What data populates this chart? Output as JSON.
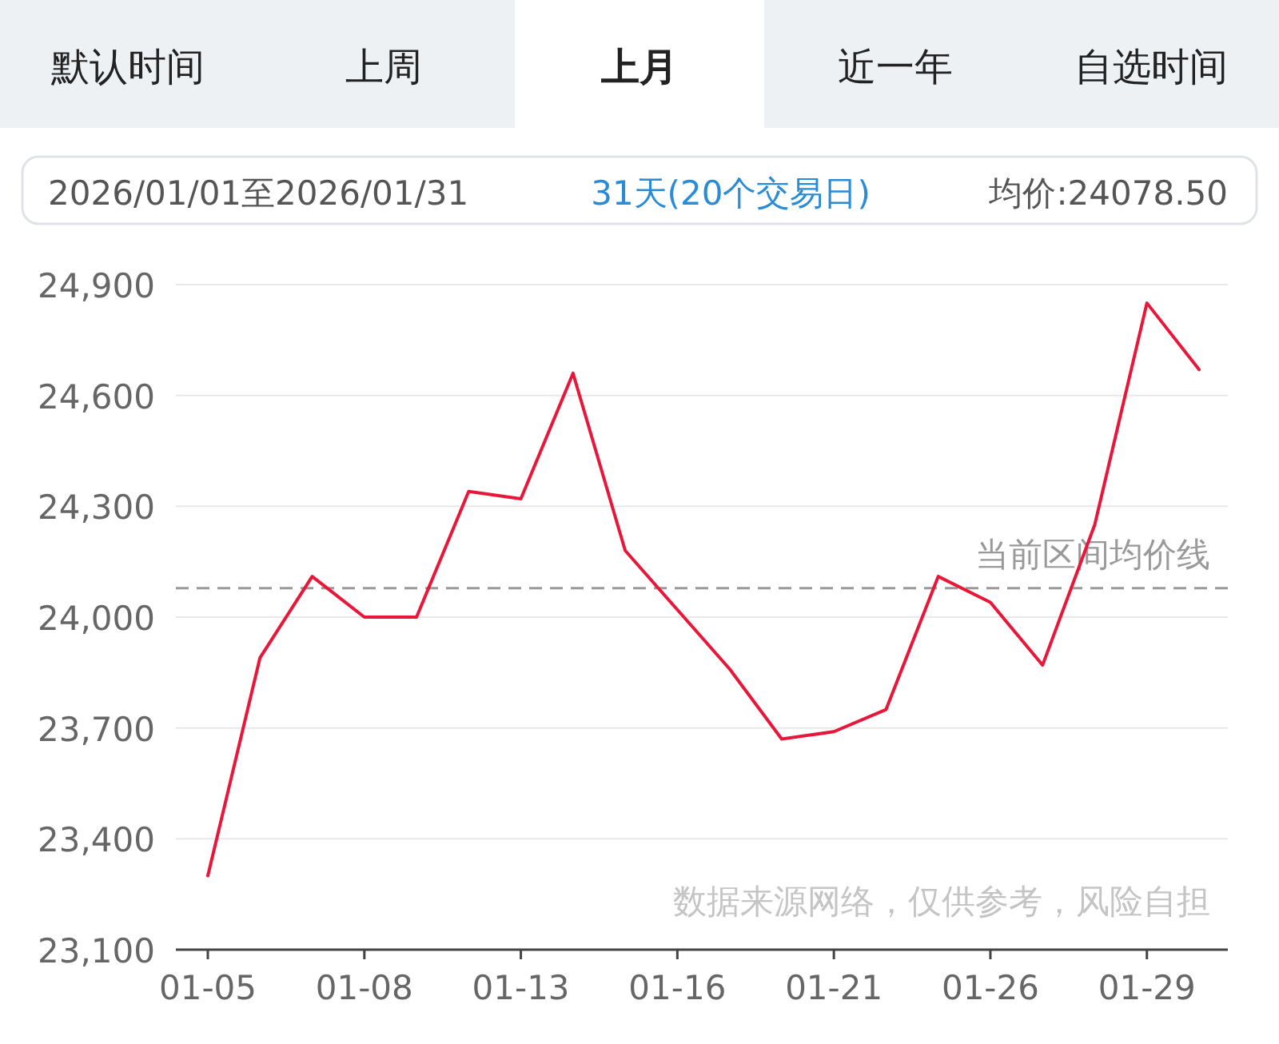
{
  "chart_data": {
    "type": "line",
    "categories": [
      "01-05",
      null,
      null,
      "01-08",
      null,
      null,
      "01-13",
      null,
      null,
      "01-16",
      null,
      null,
      "01-21",
      null,
      null,
      "01-26",
      null,
      null,
      "01-29",
      null
    ],
    "series": [
      {
        "color": "#e8173a",
        "values": [
          23300,
          23890,
          24110,
          24000,
          24000,
          24340,
          24320,
          24660,
          24180,
          24020,
          23860,
          23670,
          23690,
          23750,
          24110,
          24040,
          23870,
          24250,
          24850,
          24670
        ]
      }
    ],
    "ylim": [
      23100,
      24900
    ],
    "yticks": [
      {
        "value": 23100,
        "label": "23,100"
      },
      {
        "value": 23400,
        "label": "23,400"
      },
      {
        "value": 23700,
        "label": "23,700"
      },
      {
        "value": 24000,
        "label": "24,000"
      },
      {
        "value": 24300,
        "label": "24,300"
      },
      {
        "value": 24600,
        "label": "24,600"
      },
      {
        "value": 24900,
        "label": "24,900"
      }
    ],
    "grid": "y",
    "ref_lines": [
      {
        "axis": "y",
        "value": 24078.5,
        "label": "当前区间均价线",
        "color": "#999999",
        "line_style": "dashed"
      }
    ],
    "annotations": [
      "默认时间",
      "上周",
      "上月",
      "近一年",
      "自选时间",
      "2026/01/01至2026/01/31",
      "31天(20个交易日)",
      "均价:24078.50",
      "数据来源网络，仅供参考，风险自担"
    ]
  }
}
